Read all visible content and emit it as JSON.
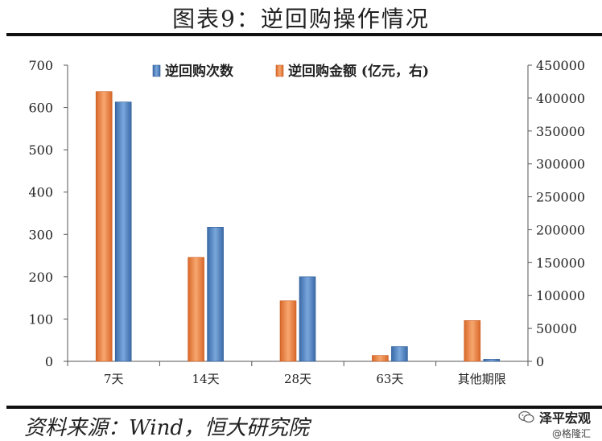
{
  "header": {
    "title": "图表9：逆回购操作情况"
  },
  "footer": {
    "source": "资料来源：Wind，恒大研究院"
  },
  "watermark": {
    "brand": "泽平宏观",
    "handle": "@格隆汇"
  },
  "chart_data": {
    "type": "bar",
    "categories": [
      "7天",
      "14天",
      "28天",
      "63天",
      "其他期限"
    ],
    "series": [
      {
        "name": "逆回购次数",
        "axis": "left",
        "color": "#4f81bd",
        "values": [
          613,
          317,
          200,
          35,
          5
        ]
      },
      {
        "name": "逆回购金额 (亿元，右)",
        "axis": "right",
        "color": "#f0894a",
        "values": [
          410000,
          158000,
          92000,
          9000,
          62000
        ]
      }
    ],
    "y_left": {
      "min": 0,
      "max": 700,
      "step": 100,
      "ticks": [
        "0",
        "100",
        "200",
        "300",
        "400",
        "500",
        "600",
        "700"
      ]
    },
    "y_right": {
      "min": 0,
      "max": 450000,
      "step": 50000,
      "ticks": [
        "0",
        "50000",
        "100000",
        "150000",
        "200000",
        "250000",
        "300000",
        "350000",
        "400000",
        "450000"
      ]
    },
    "legend_position": "top-center",
    "grid": false
  }
}
